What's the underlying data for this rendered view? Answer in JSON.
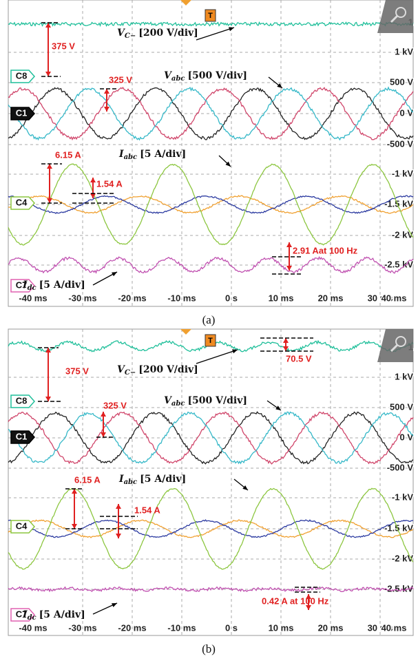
{
  "panels": [
    {
      "caption": "(a)",
      "trigger": "T",
      "channels": [
        "C8",
        "C1",
        "C4",
        "C7"
      ],
      "y_labels": [
        "1",
        "1 kV",
        "500 V",
        "0 V",
        "-500 V",
        "-1 kV",
        "-1.5 kV",
        "-2 kV",
        "-2.5 kV"
      ],
      "x_labels": [
        "-40 ms",
        "-30 ms",
        "-20 ms",
        "-10 ms",
        "0 s",
        "10 ms",
        "20 ms",
        "30 ms",
        "40 ms"
      ],
      "annotations": [
        "375 V",
        "325 V",
        "6.15 A",
        "1.54 A",
        "2.91 Aat 100 Hz"
      ],
      "signal_labels": [
        {
          "symbol": "V",
          "sub": "C−",
          "scale": "[200 V/div]"
        },
        {
          "symbol": "V",
          "sub": "abc",
          "scale": "[500 V/div]"
        },
        {
          "symbol": "I",
          "sub": "abc",
          "scale": "[5 A/div]"
        },
        {
          "symbol": "I",
          "sub": "dc",
          "scale": "[5 A/div]"
        }
      ]
    },
    {
      "caption": "(b)",
      "trigger": "T",
      "channels": [
        "C8",
        "C1",
        "C4",
        "C7"
      ],
      "y_labels": [
        "1",
        "1 kV",
        "500 V",
        "0 V",
        "-500 V",
        "-1 kV",
        "-1.5 kV",
        "-2 kV",
        "-2.5 kV"
      ],
      "x_labels": [
        "-40 ms",
        "-30 ms",
        "-20 ms",
        "-10 ms",
        "0 s",
        "10 ms",
        "20 ms",
        "30 ms",
        "40 ms"
      ],
      "annotations": [
        "375 V",
        "70.5 V",
        "325 V",
        "6.15 A",
        "1.54 A",
        "0.42 A at 100 Hz"
      ],
      "signal_labels": [
        {
          "symbol": "V",
          "sub": "C−",
          "scale": "[200 V/div]"
        },
        {
          "symbol": "V",
          "sub": "abc",
          "scale": "[500 V/div]"
        },
        {
          "symbol": "I",
          "sub": "abc",
          "scale": "[5 A/div]"
        },
        {
          "symbol": "I",
          "sub": "dc",
          "scale": "[5 A/div]"
        }
      ]
    }
  ]
}
